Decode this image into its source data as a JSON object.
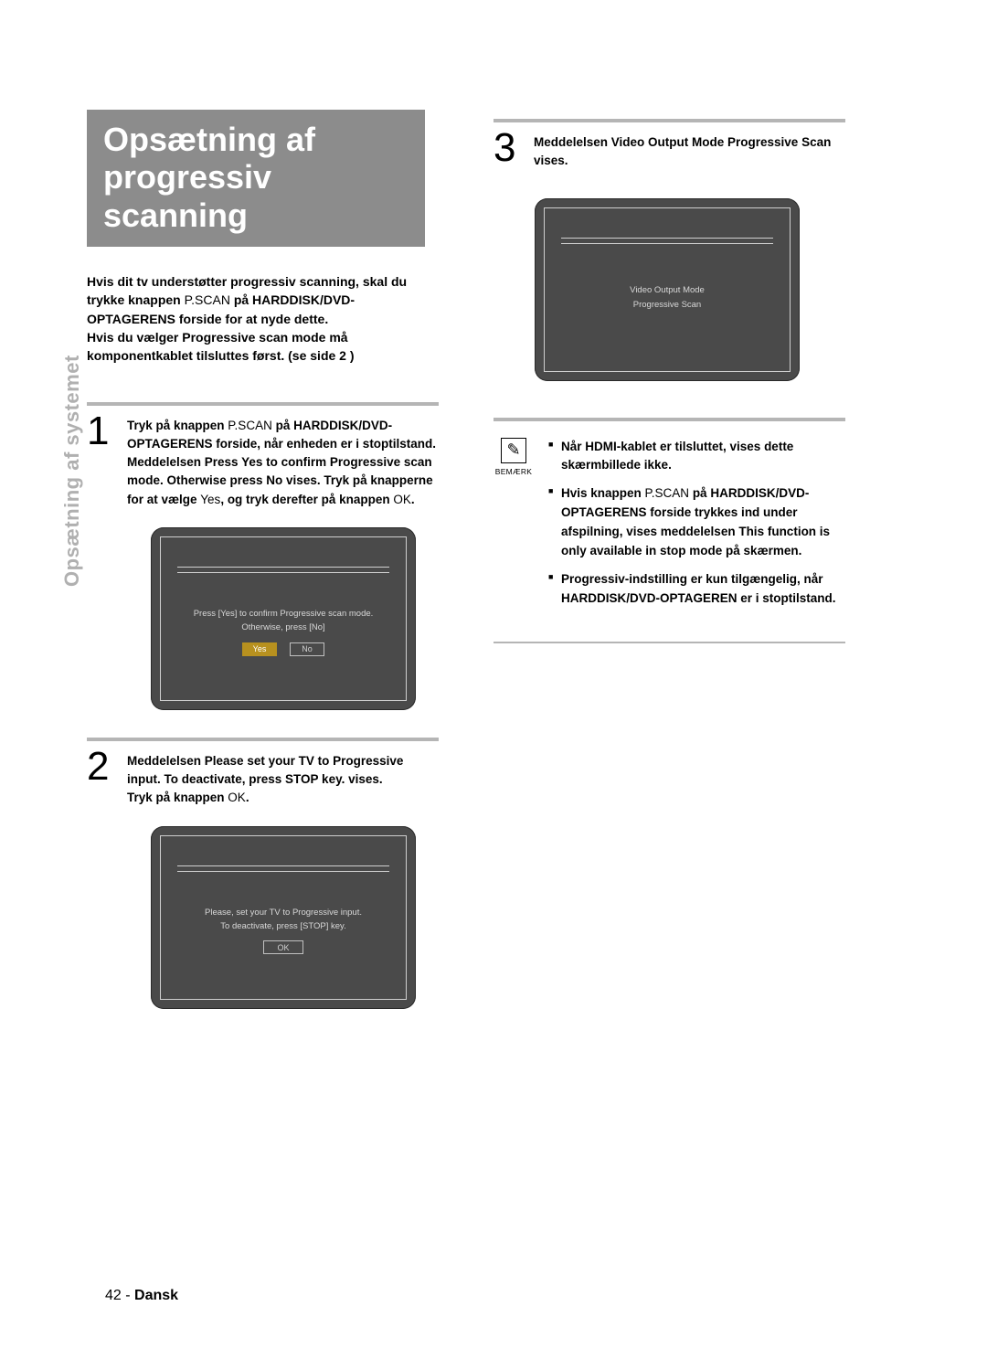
{
  "sideTab": "Opsætning af systemet",
  "title": "Opsætning af progressiv scanning",
  "intro": {
    "l1a": "Hvis dit tv understøtter progressiv scanning, skal du trykke knappen ",
    "l1b": "P.SCAN",
    "l1c": " på HARDDISK/DVD-OPTAGERENS forside for at nyde dette.",
    "l2": "Hvis du vælger Progressive scan mode må komponentkablet tilsluttes først. (se side 2 )"
  },
  "step1": {
    "num": "1",
    "t1": "Tryk på knappen ",
    "t2": "P.SCAN",
    "t3": " på HARDDISK/DVD-OPTAGERENS forside, når enheden er i stoptilstand.",
    "t4": "Meddelelsen Press  Yes  to confirm Progressive scan mode. Otherwise press  No  vises. Tryk på knapperne          for at vælge ",
    "t5": "Yes",
    "t6": ", og tryk derefter på knappen ",
    "t7": "OK",
    "t8": "."
  },
  "tv1": {
    "line1": "Press [Yes] to confirm Progressive scan mode.",
    "line2": "Otherwise, press [No]",
    "yes": "Yes",
    "no": "No"
  },
  "step2": {
    "num": "2",
    "t1": "Meddelelsen Please set your TV to Progressive input. To deactivate, press  STOP  key. vises.",
    "t2": "Tryk på knappen ",
    "t3": "OK",
    "t4": "."
  },
  "tv2": {
    "line1": "Please, set your TV to Progressive input.",
    "line2": "To deactivate, press [STOP] key.",
    "ok": "OK"
  },
  "step3": {
    "num": "3",
    "t1": "Meddelelsen Video Output Mode Progressive Scan vises."
  },
  "tv3": {
    "line1": "Video Output Mode",
    "line2": "Progressive Scan"
  },
  "note": {
    "label": "BEMÆRK",
    "p1": "Når HDMI-kablet er tilsluttet, vises dette skærmbillede ikke.",
    "p2a": "Hvis knappen ",
    "p2b": "P.SCAN",
    "p2c": " på HARDDISK/DVD-OPTAGERENS forside trykkes ind under afspilning, vises meddelelsen This function is only available in stop mode på skærmen.",
    "p3": "Progressiv-indstilling er kun tilgængelig, når HARDDISK/DVD-OPTAGEREN er i stoptilstand."
  },
  "footer": {
    "page": "42 - ",
    "lang": "Dansk"
  },
  "colors": {
    "titleBg": "#8c8c8c",
    "tvBg": "#4a4a4a",
    "btnSelected": "#b8911f",
    "ruleGray": "#b5b5b5",
    "sideGray": "#b0b0b0"
  }
}
